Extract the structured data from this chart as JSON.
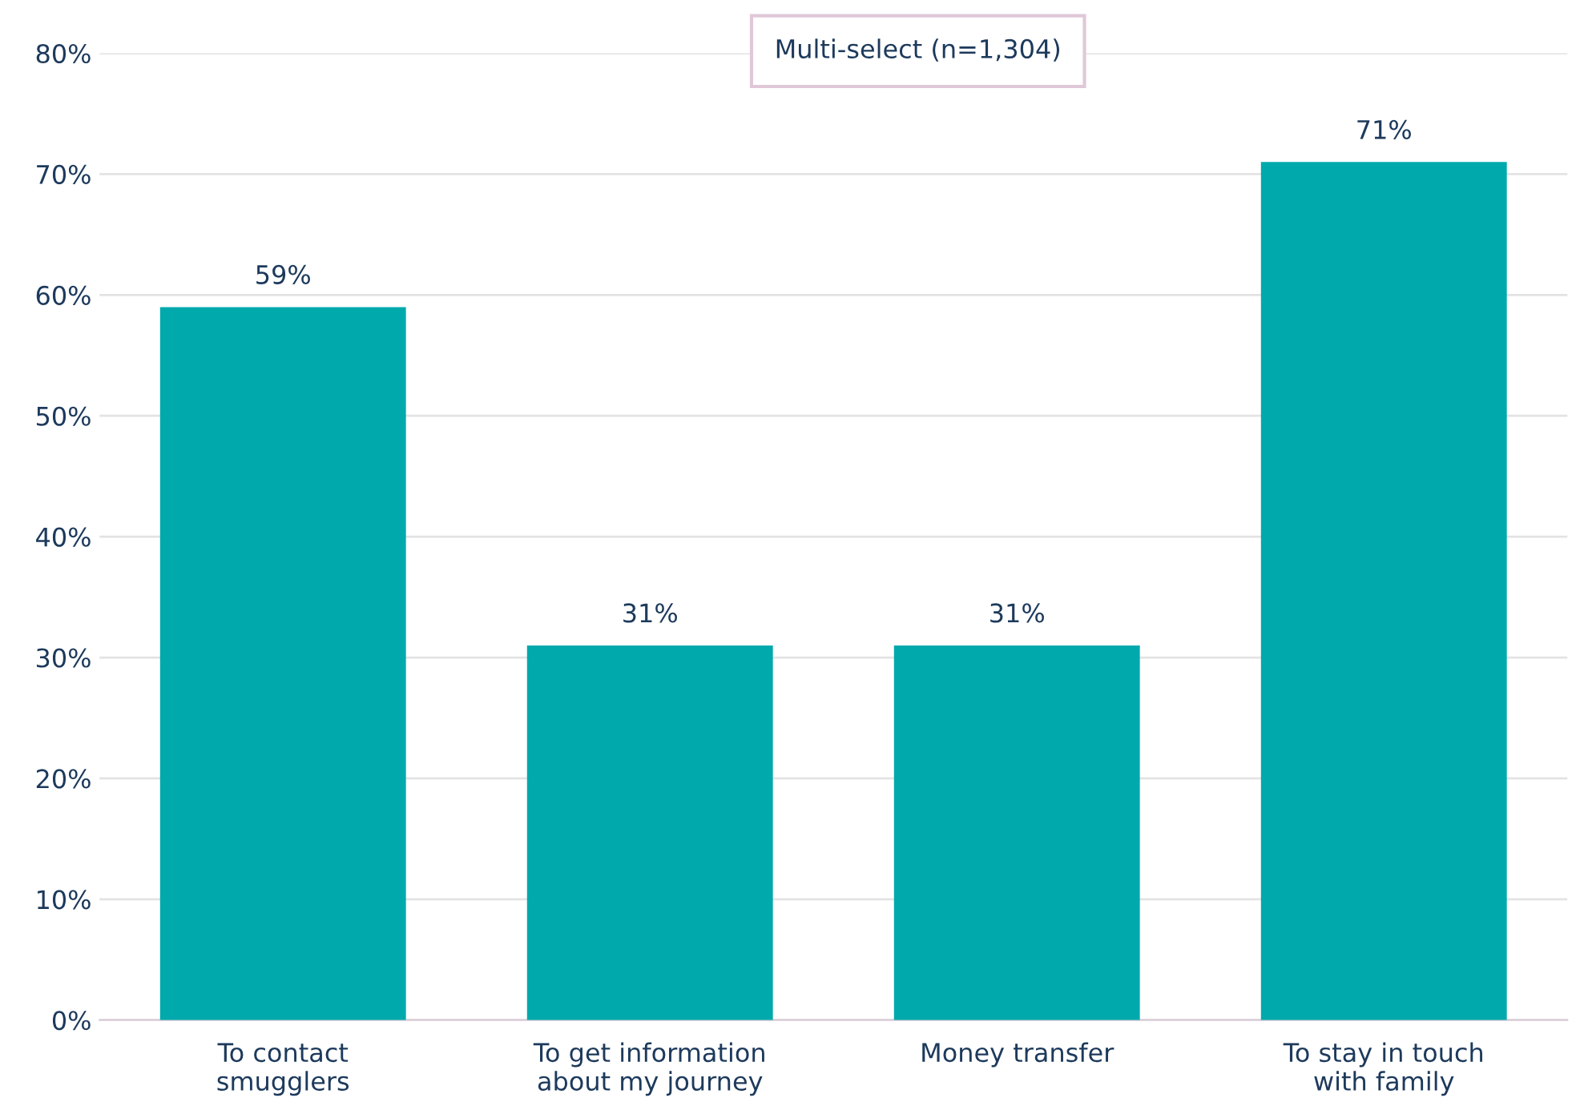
{
  "chart_data": {
    "type": "bar",
    "categories": [
      "To contact\nsmugglers",
      "To get information\nabout my journey",
      "Money transfer",
      "To stay in touch\nwith family"
    ],
    "values": [
      59,
      31,
      31,
      71
    ],
    "value_labels": [
      "59%",
      "31%",
      "31%",
      "71%"
    ],
    "color": "#00a9ac",
    "ylim": [
      0,
      80
    ],
    "yticks": [
      {
        "value": 0,
        "label": "0%"
      },
      {
        "value": 10,
        "label": "10%"
      },
      {
        "value": 20,
        "label": "20%"
      },
      {
        "value": 30,
        "label": "30%"
      },
      {
        "value": 40,
        "label": "40%"
      },
      {
        "value": 50,
        "label": "50%"
      },
      {
        "value": 60,
        "label": "60%"
      },
      {
        "value": 70,
        "label": "70%"
      },
      {
        "value": 80,
        "label": "80%"
      }
    ],
    "grid": "y",
    "annotations": [
      "Multi-select (n=1,304)"
    ]
  }
}
